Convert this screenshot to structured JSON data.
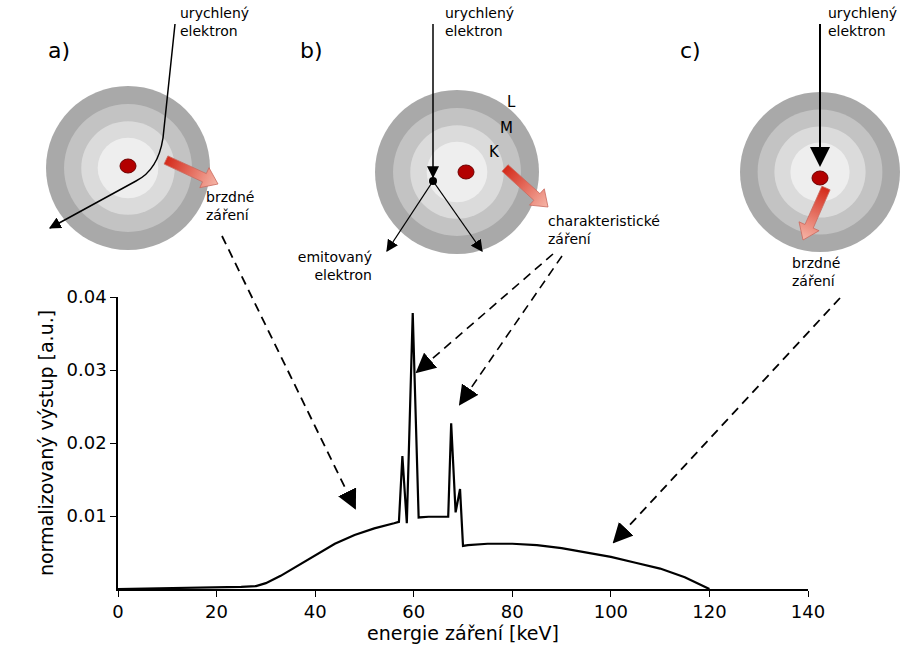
{
  "chart_data": {
    "type": "line",
    "x": [
      0,
      10,
      20,
      25,
      28,
      30,
      33,
      36,
      40,
      44,
      48,
      52,
      56,
      57,
      57.7,
      58.6,
      59.8,
      61,
      63,
      66,
      67,
      67.6,
      68.5,
      69.4,
      70,
      71,
      75,
      80,
      85,
      90,
      95,
      100,
      105,
      110,
      115,
      120
    ],
    "values": [
      0,
      0.0001,
      0.0002,
      0.0003,
      0.0004,
      0.0008,
      0.0018,
      0.003,
      0.0045,
      0.0062,
      0.0074,
      0.0083,
      0.009,
      0.0092,
      0.0182,
      0.009,
      0.0378,
      0.0098,
      0.0099,
      0.0099,
      0.0099,
      0.0227,
      0.0105,
      0.0137,
      0.0059,
      0.006,
      0.0062,
      0.0062,
      0.006,
      0.0056,
      0.005,
      0.0044,
      0.0036,
      0.0028,
      0.0016,
      0
    ],
    "color": "#000000",
    "xlim": [
      0,
      140
    ],
    "xticks": [
      0,
      20,
      40,
      60,
      80,
      100,
      120,
      140
    ],
    "ylim": [
      0,
      0.04
    ],
    "yticks": [
      0.01,
      0.02,
      0.03,
      0.04
    ],
    "x_label": "energie záření [keV]",
    "y_label": "normalizovaný výstup [a.u.]",
    "grid": false,
    "panels": [
      {
        "letter": "a)",
        "electron": "urychlený elektron",
        "radiation": "brzdné záření"
      },
      {
        "letter": "b)",
        "electron": "urychlený elektron",
        "shells": [
          "L",
          "M",
          "K"
        ],
        "emitted": "emitovaný elektron",
        "radiation": "charakteristické záření"
      },
      {
        "letter": "c)",
        "electron": "urychlený elektron",
        "radiation": "brzdné záření"
      }
    ]
  }
}
